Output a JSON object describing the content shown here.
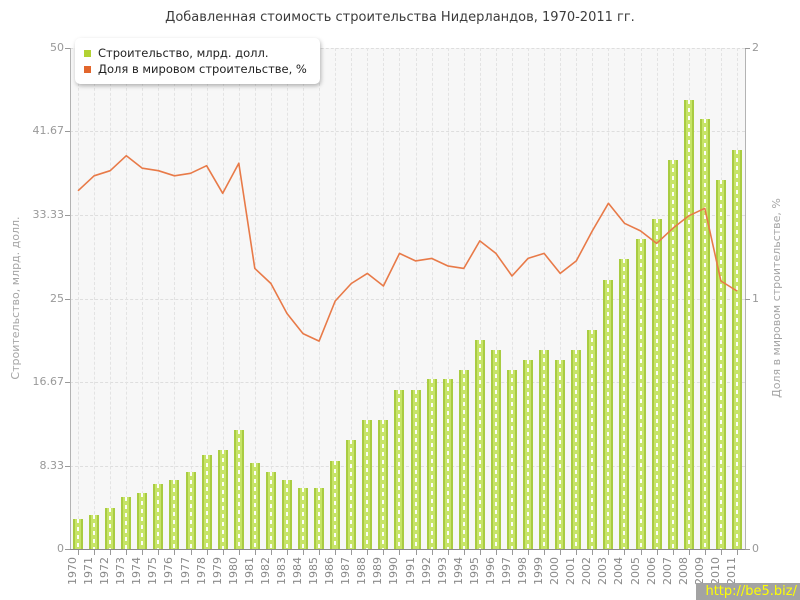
{
  "title": "Добавленная стоимость строительства Нидерландов, 1970-2011 гг.",
  "legend": {
    "items": [
      {
        "label": "Строительство, млрд. долл.",
        "color": "#b2d233"
      },
      {
        "label": "Доля в мировом строительстве, %",
        "color": "#e2662c"
      }
    ]
  },
  "watermark": "http://be5.biz/",
  "colors": {
    "bar_fill": "#c7e468",
    "bar_edge": "#a9cc41",
    "line": "#e87a48",
    "plot_background": "#f7f7f7",
    "grid": "#dedede"
  },
  "chart_data": {
    "type": "bar",
    "title": "Добавленная стоимость строительства Нидерландов, 1970-2011 гг.",
    "categories": [
      "1970",
      "1971",
      "1972",
      "1973",
      "1974",
      "1975",
      "1976",
      "1977",
      "1978",
      "1979",
      "1980",
      "1981",
      "1982",
      "1983",
      "1984",
      "1985",
      "1986",
      "1987",
      "1988",
      "1989",
      "1990",
      "1991",
      "1992",
      "1993",
      "1994",
      "1995",
      "1996",
      "1997",
      "1998",
      "1999",
      "2000",
      "2001",
      "2002",
      "2003",
      "2004",
      "2005",
      "2006",
      "2007",
      "2008",
      "2009",
      "2010",
      "2011"
    ],
    "series": [
      {
        "name": "Строительство, млрд. долл.",
        "type": "bar",
        "axis": "left",
        "color": "#c7e468",
        "values": [
          3.0,
          3.4,
          4.1,
          5.2,
          5.6,
          6.5,
          6.9,
          7.7,
          9.4,
          9.9,
          11.9,
          8.6,
          7.7,
          6.9,
          6.1,
          6.1,
          8.8,
          10.9,
          12.9,
          12.9,
          15.9,
          15.9,
          17.0,
          17.0,
          17.9,
          20.9,
          19.9,
          17.9,
          18.9,
          19.9,
          18.9,
          19.9,
          21.9,
          26.8,
          28.9,
          30.9,
          32.9,
          38.8,
          44.8,
          42.9,
          36.8,
          39.8
        ]
      },
      {
        "name": "Доля в мировом строительстве, %",
        "type": "line",
        "axis": "right",
        "color": "#e87a48",
        "values": [
          1.43,
          1.49,
          1.51,
          1.57,
          1.52,
          1.51,
          1.49,
          1.5,
          1.53,
          1.42,
          1.54,
          1.12,
          1.06,
          0.94,
          0.86,
          0.83,
          0.99,
          1.06,
          1.1,
          1.05,
          1.18,
          1.15,
          1.16,
          1.13,
          1.12,
          1.23,
          1.18,
          1.09,
          1.16,
          1.18,
          1.1,
          1.15,
          1.27,
          1.38,
          1.3,
          1.27,
          1.22,
          1.28,
          1.33,
          1.36,
          1.07,
          1.03
        ]
      }
    ],
    "left_axis": {
      "label": "Строительство, млрд. долл.",
      "range": [
        0,
        50
      ],
      "ticks": [
        "0",
        "8.33",
        "16.67",
        "25",
        "33.33",
        "41.67",
        "50"
      ]
    },
    "right_axis": {
      "label": "Доля в мировом строительстве, %",
      "range": [
        0,
        2
      ],
      "ticks": [
        "0",
        "1",
        "2"
      ]
    },
    "grid": true,
    "legend_position": "top-left"
  }
}
